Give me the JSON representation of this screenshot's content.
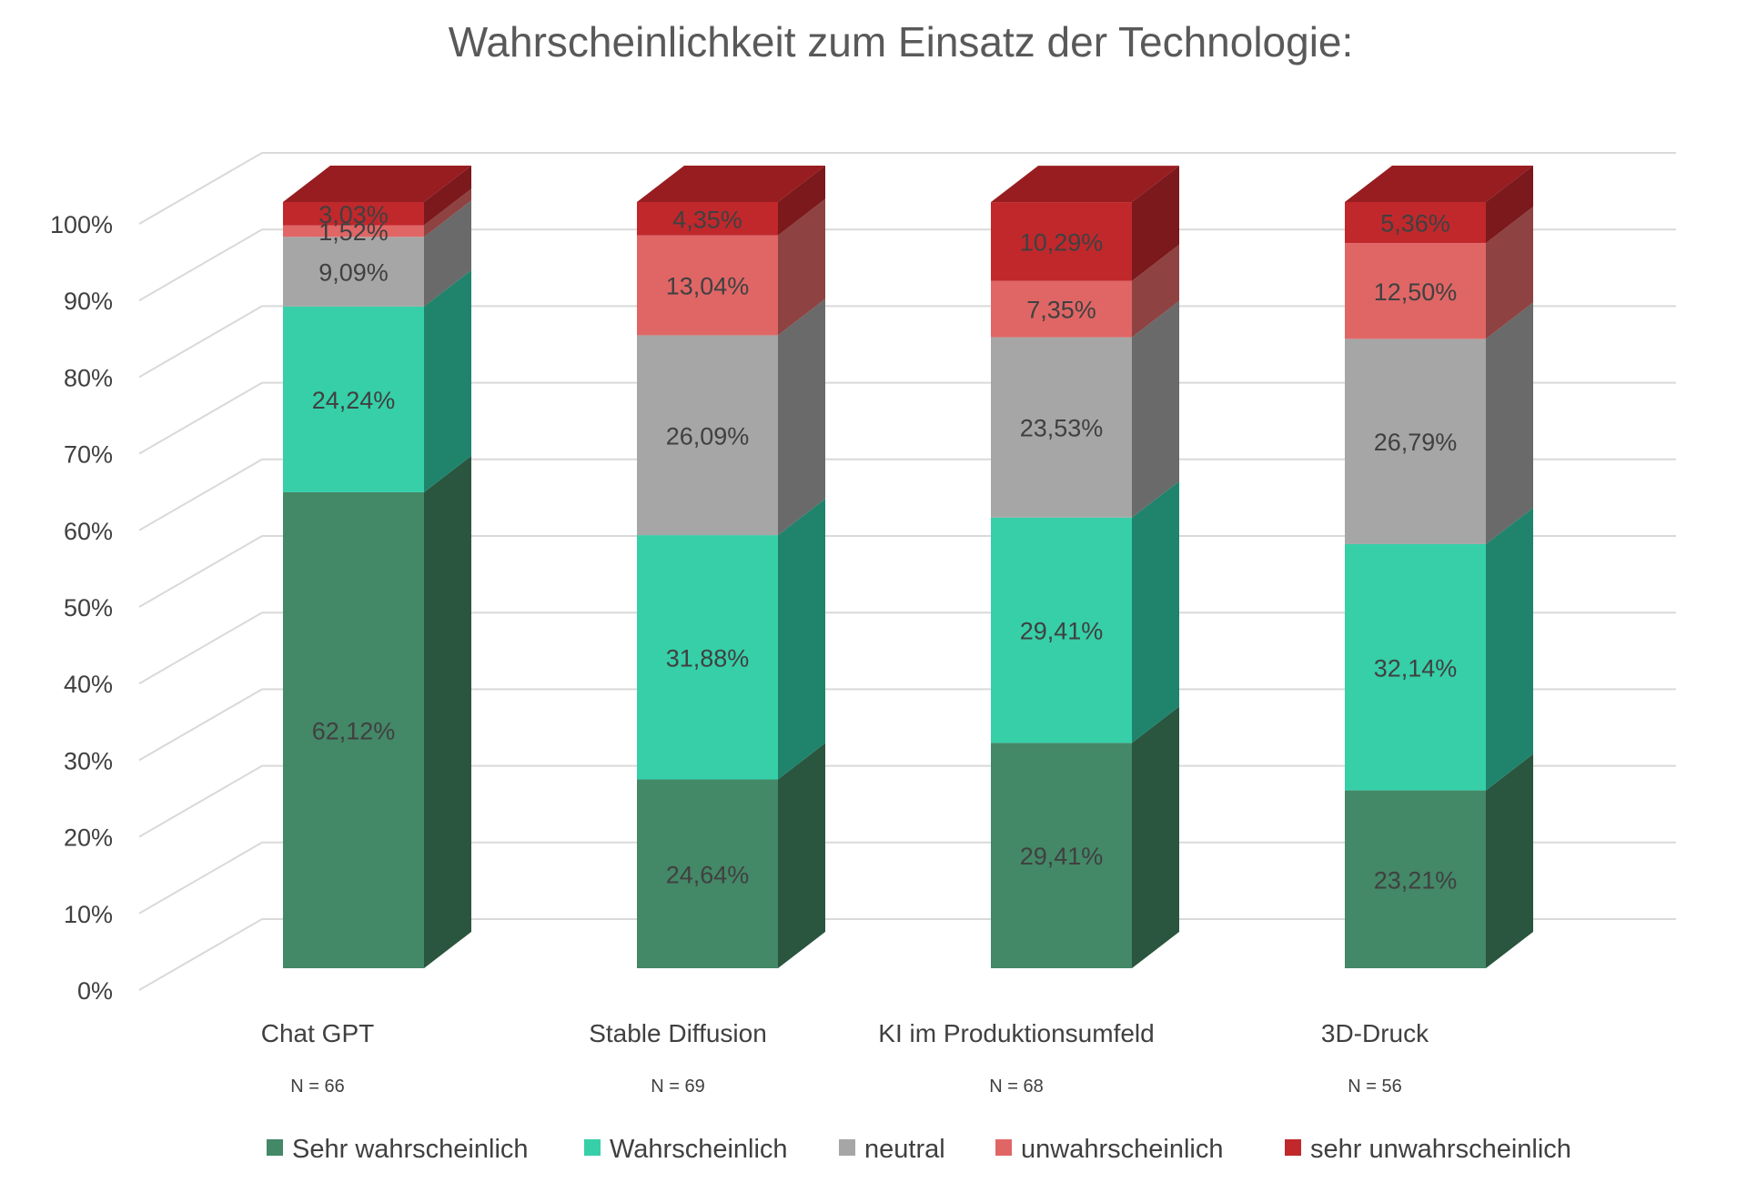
{
  "chart_data": {
    "type": "bar",
    "stacked": true,
    "three_d": true,
    "title": "Wahrscheinlichkeit zum Einsatz der Technologie:",
    "categories": [
      "Chat GPT",
      "Stable Diffusion",
      "KI im Produktionsumfeld",
      "3D-Druck"
    ],
    "category_notes": [
      "N = 66",
      "N = 69",
      "N = 68",
      "N = 56"
    ],
    "ylim": [
      0,
      100
    ],
    "yticks": [
      "0%",
      "10%",
      "20%",
      "30%",
      "40%",
      "50%",
      "60%",
      "70%",
      "80%",
      "90%",
      "100%"
    ],
    "grid": true,
    "legend_position": "bottom",
    "series": [
      {
        "name": "Sehr wahrscheinlich",
        "color": "#438867",
        "side_color": "#2A553F",
        "values": [
          62.12,
          24.64,
          29.41,
          23.21
        ],
        "labels": [
          "62,12%",
          "24,64%",
          "29,41%",
          "23,21%"
        ]
      },
      {
        "name": "Wahrscheinlich",
        "color": "#36CFA8",
        "side_color": "#20846C",
        "values": [
          24.24,
          31.88,
          29.41,
          32.14
        ],
        "labels": [
          "24,24%",
          "31,88%",
          "29,41%",
          "32,14%"
        ]
      },
      {
        "name": "neutral",
        "color": "#A6A6A6",
        "side_color": "#6A6A6A",
        "values": [
          9.09,
          26.09,
          23.53,
          26.79
        ],
        "labels": [
          "9,09%",
          "26,09%",
          "23,53%",
          "26,79%"
        ]
      },
      {
        "name": "unwahrscheinlich",
        "color": "#E06666",
        "side_color": "#8F4242",
        "values": [
          1.52,
          13.04,
          7.35,
          12.5
        ],
        "labels": [
          "1,52%",
          "13,04%",
          "7,35%",
          "12,50%"
        ]
      },
      {
        "name": "sehr unwahrscheinlich",
        "color": "#C0282C",
        "side_color": "#7B191C",
        "top_color": "#981D20",
        "values": [
          3.03,
          4.35,
          10.29,
          5.36
        ],
        "labels": [
          "3,03%",
          "4,35%",
          "10,29%",
          "5,36%"
        ]
      }
    ]
  }
}
